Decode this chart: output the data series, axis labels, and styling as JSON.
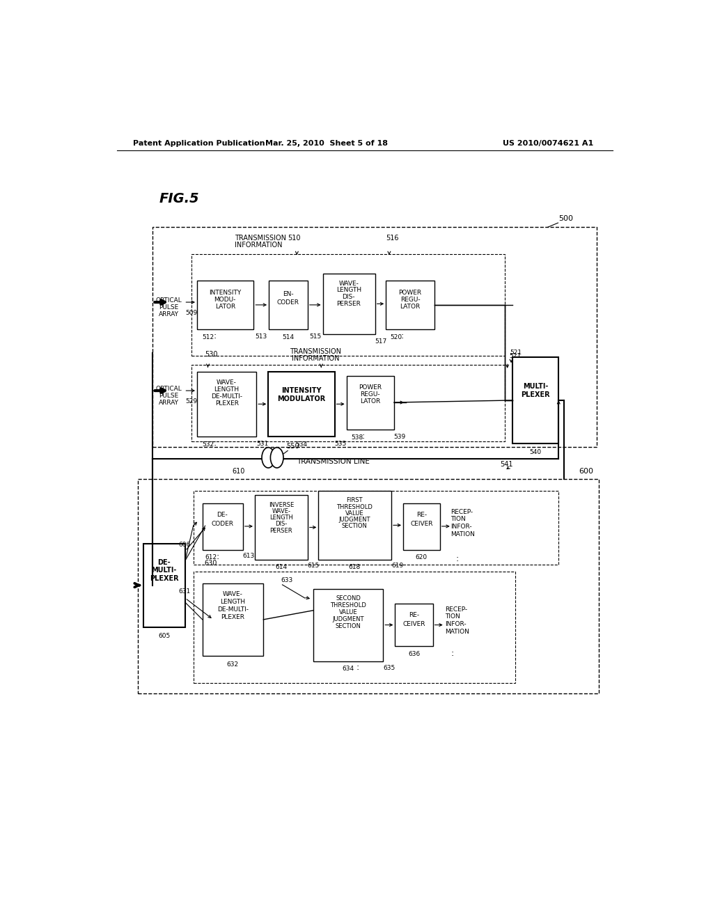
{
  "bg_color": "#ffffff",
  "header_left": "Patent Application Publication",
  "header_mid": "Mar. 25, 2010  Sheet 5 of 18",
  "header_right": "US 2010/0074621 A1",
  "fig_label": "FIG.5"
}
